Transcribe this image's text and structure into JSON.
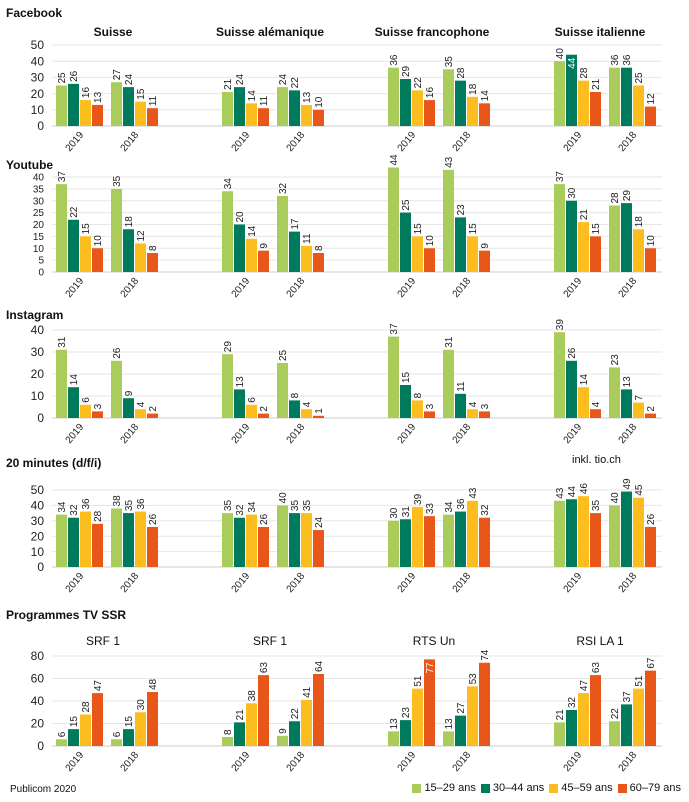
{
  "colors": {
    "15-29": "#a9cc5b",
    "30-44": "#007a5c",
    "45-59": "#fbbe1e",
    "60-79": "#e85619"
  },
  "legend": [
    "15–29 ans",
    "30–44 ans",
    "45–59 ans",
    "60–79 ans"
  ],
  "source": "Publicom 2020",
  "chart_data": [
    {
      "type": "bar",
      "title": "Facebook",
      "ylim": [
        0,
        50
      ],
      "yticks": [
        0,
        10,
        20,
        30,
        40,
        50
      ],
      "groups": [
        {
          "label": "Suisse",
          "years": [
            {
              "year": "2019",
              "values": [
                25,
                26,
                16,
                13
              ]
            },
            {
              "year": "2018",
              "values": [
                27,
                24,
                15,
                11
              ]
            }
          ]
        },
        {
          "label": "Suisse alémanique",
          "years": [
            {
              "year": "2019",
              "values": [
                21,
                24,
                14,
                11
              ]
            },
            {
              "year": "2018",
              "values": [
                24,
                22,
                13,
                10
              ]
            }
          ]
        },
        {
          "label": "Suisse francophone",
          "years": [
            {
              "year": "2019",
              "values": [
                36,
                29,
                22,
                16
              ]
            },
            {
              "year": "2018",
              "values": [
                35,
                28,
                18,
                14
              ]
            }
          ]
        },
        {
          "label": "Suisse italienne",
          "years": [
            {
              "year": "2019",
              "values": [
                40,
                44,
                28,
                21
              ]
            },
            {
              "year": "2018",
              "values": [
                36,
                36,
                25,
                12
              ]
            }
          ]
        }
      ]
    },
    {
      "type": "bar",
      "title": "Youtube",
      "ylim": [
        0,
        40
      ],
      "yticks": [
        0,
        5,
        10,
        15,
        20,
        25,
        30,
        35,
        40
      ],
      "groups": [
        {
          "label": "",
          "years": [
            {
              "year": "2019",
              "values": [
                37,
                22,
                15,
                10
              ]
            },
            {
              "year": "2018",
              "values": [
                35,
                18,
                12,
                8
              ]
            }
          ]
        },
        {
          "label": "",
          "years": [
            {
              "year": "2019",
              "values": [
                34,
                20,
                14,
                9
              ]
            },
            {
              "year": "2018",
              "values": [
                32,
                17,
                11,
                8
              ]
            }
          ]
        },
        {
          "label": "",
          "years": [
            {
              "year": "2019",
              "values": [
                44,
                25,
                15,
                10
              ]
            },
            {
              "year": "2018",
              "values": [
                43,
                23,
                15,
                9
              ]
            }
          ]
        },
        {
          "label": "",
          "years": [
            {
              "year": "2019",
              "values": [
                37,
                30,
                21,
                15
              ]
            },
            {
              "year": "2018",
              "values": [
                28,
                29,
                18,
                10
              ]
            }
          ]
        }
      ]
    },
    {
      "type": "bar",
      "title": "Instagram",
      "ylim": [
        0,
        40
      ],
      "yticks": [
        0,
        10,
        20,
        30,
        40
      ],
      "groups": [
        {
          "label": "",
          "years": [
            {
              "year": "2019",
              "values": [
                31,
                14,
                6,
                3
              ]
            },
            {
              "year": "2018",
              "values": [
                26,
                9,
                4,
                2
              ]
            }
          ]
        },
        {
          "label": "",
          "years": [
            {
              "year": "2019",
              "values": [
                29,
                13,
                6,
                2
              ]
            },
            {
              "year": "2018",
              "values": [
                25,
                8,
                4,
                1
              ]
            }
          ]
        },
        {
          "label": "",
          "years": [
            {
              "year": "2019",
              "values": [
                37,
                15,
                8,
                3
              ]
            },
            {
              "year": "2018",
              "values": [
                31,
                11,
                4,
                3
              ]
            }
          ]
        },
        {
          "label": "",
          "years": [
            {
              "year": "2019",
              "values": [
                39,
                26,
                14,
                4
              ]
            },
            {
              "year": "2018",
              "values": [
                23,
                13,
                7,
                2
              ]
            }
          ]
        }
      ]
    },
    {
      "type": "bar",
      "title": "20 minutes (d/f/i)",
      "annotation": "inkl. tio.ch",
      "ylim": [
        0,
        50
      ],
      "yticks": [
        0,
        10,
        20,
        30,
        40,
        50
      ],
      "groups": [
        {
          "label": "",
          "years": [
            {
              "year": "2019",
              "values": [
                34,
                32,
                36,
                28
              ]
            },
            {
              "year": "2018",
              "values": [
                38,
                35,
                36,
                26
              ]
            }
          ]
        },
        {
          "label": "",
          "years": [
            {
              "year": "2019",
              "values": [
                35,
                32,
                34,
                26
              ]
            },
            {
              "year": "2018",
              "values": [
                40,
                35,
                35,
                24
              ]
            }
          ]
        },
        {
          "label": "",
          "years": [
            {
              "year": "2019",
              "values": [
                30,
                31,
                39,
                33
              ]
            },
            {
              "year": "2018",
              "values": [
                34,
                36,
                43,
                32
              ]
            }
          ]
        },
        {
          "label": "",
          "years": [
            {
              "year": "2019",
              "values": [
                43,
                44,
                46,
                35
              ]
            },
            {
              "year": "2018",
              "values": [
                40,
                49,
                45,
                26
              ]
            }
          ]
        }
      ]
    },
    {
      "type": "bar",
      "title": "Programmes TV SSR",
      "ylim": [
        0,
        80
      ],
      "yticks": [
        0,
        20,
        40,
        60,
        80
      ],
      "groups": [
        {
          "label": "SRF 1",
          "years": [
            {
              "year": "2019",
              "values": [
                6,
                15,
                28,
                47
              ]
            },
            {
              "year": "2018",
              "values": [
                6,
                15,
                30,
                48
              ]
            }
          ]
        },
        {
          "label": "SRF 1",
          "years": [
            {
              "year": "2019",
              "values": [
                8,
                21,
                38,
                63
              ]
            },
            {
              "year": "2018",
              "values": [
                9,
                22,
                41,
                64
              ]
            }
          ]
        },
        {
          "label": "RTS Un",
          "years": [
            {
              "year": "2019",
              "values": [
                13,
                23,
                51,
                77
              ]
            },
            {
              "year": "2018",
              "values": [
                13,
                27,
                53,
                74
              ]
            }
          ]
        },
        {
          "label": "RSI LA 1",
          "years": [
            {
              "year": "2019",
              "values": [
                21,
                32,
                47,
                63
              ]
            },
            {
              "year": "2018",
              "values": [
                22,
                37,
                51,
                67
              ]
            }
          ]
        }
      ]
    }
  ]
}
